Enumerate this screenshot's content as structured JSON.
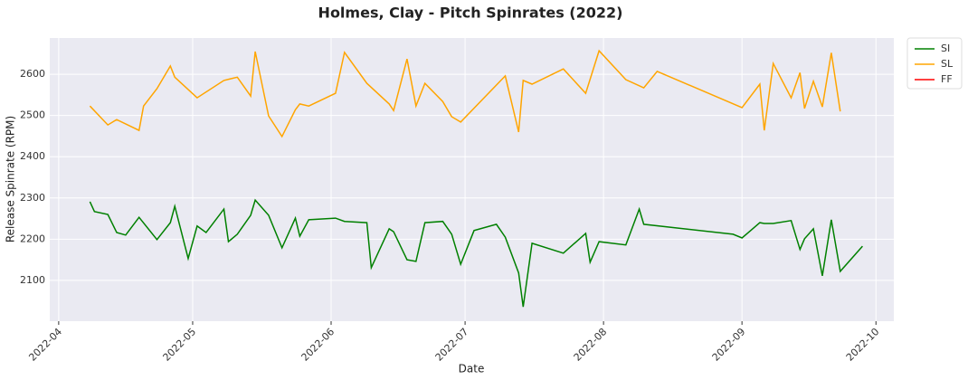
{
  "chart_data": {
    "type": "line",
    "title": "Holmes, Clay - Pitch Spinrates (2022)",
    "xlabel": "Date",
    "ylabel": "Release Spinrate (RPM)",
    "xlim": [
      "2022-03-30",
      "2022-10-05"
    ],
    "ylim": [
      2001,
      2688
    ],
    "xticks": [
      {
        "value": "2022-04-01",
        "label": "2022-04"
      },
      {
        "value": "2022-05-01",
        "label": "2022-05"
      },
      {
        "value": "2022-06-01",
        "label": "2022-06"
      },
      {
        "value": "2022-07-01",
        "label": "2022-07"
      },
      {
        "value": "2022-08-01",
        "label": "2022-08"
      },
      {
        "value": "2022-09-01",
        "label": "2022-09"
      },
      {
        "value": "2022-10-01",
        "label": "2022-10"
      }
    ],
    "yticks": [
      2100,
      2200,
      2300,
      2400,
      2500,
      2600
    ],
    "grid": true,
    "legend": "outside-upper-right",
    "series": [
      {
        "name": "SI",
        "color": "#008000",
        "x": [
          "2022-04-08",
          "2022-04-09",
          "2022-04-12",
          "2022-04-14",
          "2022-04-16",
          "2022-04-19",
          "2022-04-23",
          "2022-04-26",
          "2022-04-27",
          "2022-04-30",
          "2022-05-02",
          "2022-05-04",
          "2022-05-08",
          "2022-05-09",
          "2022-05-11",
          "2022-05-14",
          "2022-05-15",
          "2022-05-18",
          "2022-05-21",
          "2022-05-24",
          "2022-05-25",
          "2022-05-27",
          "2022-06-02",
          "2022-06-04",
          "2022-06-09",
          "2022-06-10",
          "2022-06-14",
          "2022-06-15",
          "2022-06-18",
          "2022-06-20",
          "2022-06-22",
          "2022-06-26",
          "2022-06-28",
          "2022-06-30",
          "2022-07-03",
          "2022-07-08",
          "2022-07-10",
          "2022-07-13",
          "2022-07-14",
          "2022-07-16",
          "2022-07-23",
          "2022-07-28",
          "2022-07-29",
          "2022-07-31",
          "2022-08-06",
          "2022-08-09",
          "2022-08-10",
          "2022-08-30",
          "2022-09-01",
          "2022-09-05",
          "2022-09-06",
          "2022-09-08",
          "2022-09-12",
          "2022-09-14",
          "2022-09-15",
          "2022-09-17",
          "2022-09-19",
          "2022-09-21",
          "2022-09-23",
          "2022-09-28"
        ],
        "values": [
          2291,
          2267,
          2260,
          2216,
          2210,
          2253,
          2199,
          2240,
          2280,
          2153,
          2232,
          2216,
          2273,
          2194,
          2212,
          2258,
          2295,
          2258,
          2179,
          2251,
          2207,
          2247,
          2251,
          2243,
          2240,
          2131,
          2225,
          2218,
          2150,
          2146,
          2240,
          2243,
          2212,
          2139,
          2221,
          2236,
          2205,
          2118,
          2036,
          2190,
          2166,
          2214,
          2144,
          2194,
          2186,
          2273,
          2236,
          2212,
          2203,
          2240,
          2238,
          2238,
          2245,
          2175,
          2201,
          2225,
          2111,
          2247,
          2122,
          2183
        ]
      },
      {
        "name": "SL",
        "color": "#ffa500",
        "x": [
          "2022-04-08",
          "2022-04-12",
          "2022-04-14",
          "2022-04-19",
          "2022-04-20",
          "2022-04-23",
          "2022-04-26",
          "2022-04-27",
          "2022-05-02",
          "2022-05-08",
          "2022-05-11",
          "2022-05-14",
          "2022-05-15",
          "2022-05-18",
          "2022-05-21",
          "2022-05-24",
          "2022-05-25",
          "2022-05-27",
          "2022-06-02",
          "2022-06-04",
          "2022-06-09",
          "2022-06-14",
          "2022-06-15",
          "2022-06-18",
          "2022-06-20",
          "2022-06-22",
          "2022-06-26",
          "2022-06-28",
          "2022-06-30",
          "2022-07-10",
          "2022-07-13",
          "2022-07-14",
          "2022-07-16",
          "2022-07-23",
          "2022-07-28",
          "2022-07-31",
          "2022-08-06",
          "2022-08-10",
          "2022-08-13",
          "2022-09-01",
          "2022-09-05",
          "2022-09-06",
          "2022-09-08",
          "2022-09-12",
          "2022-09-14",
          "2022-09-15",
          "2022-09-17",
          "2022-09-19",
          "2022-09-21",
          "2022-09-23"
        ],
        "values": [
          2523,
          2477,
          2490,
          2464,
          2523,
          2565,
          2620,
          2593,
          2543,
          2585,
          2593,
          2547,
          2655,
          2499,
          2449,
          2514,
          2528,
          2523,
          2554,
          2653,
          2578,
          2528,
          2512,
          2637,
          2523,
          2578,
          2534,
          2497,
          2484,
          2596,
          2460,
          2585,
          2576,
          2613,
          2554,
          2657,
          2587,
          2567,
          2607,
          2519,
          2576,
          2464,
          2626,
          2543,
          2604,
          2517,
          2583,
          2521,
          2652,
          2510
        ]
      },
      {
        "name": "FF",
        "color": "#ff0000",
        "x": [],
        "values": []
      }
    ]
  }
}
